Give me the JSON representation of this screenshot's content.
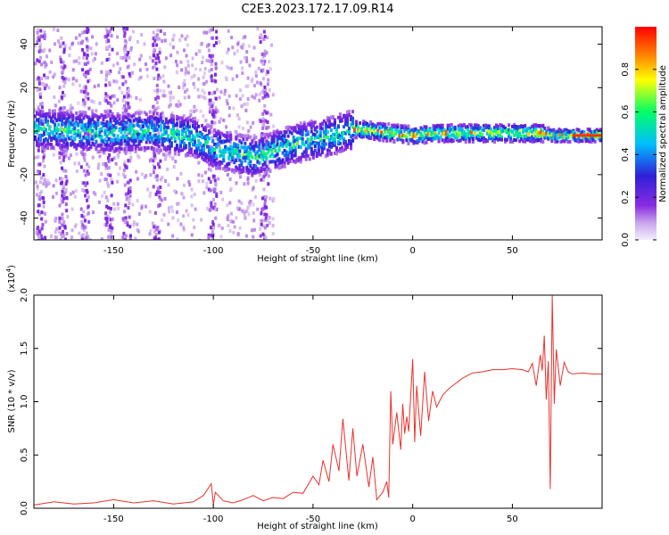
{
  "title": "C2E3.2023.172.17.09.R14",
  "chart_data": [
    {
      "type": "heatmap",
      "xlabel": "Height of straight line (km)",
      "ylabel": "Frequency (Hz)",
      "xlim": [
        -190,
        95
      ],
      "ylim": [
        -50,
        48
      ],
      "xticks": [
        -150,
        -100,
        -50,
        0,
        50
      ],
      "yticks": [
        -40,
        -20,
        0,
        20,
        40
      ],
      "grid": false,
      "colorbar": {
        "label": "Normalized spectral amplitude",
        "range": [
          0,
          1
        ],
        "ticks": [
          0.0,
          0.2,
          0.4,
          0.6,
          0.8
        ],
        "colormap": [
          "#f4eefc",
          "#c9a6ec",
          "#8a2be2",
          "#2f1fd8",
          "#00bfff",
          "#00ff66",
          "#ffff00",
          "#ff8000",
          "#ff0000"
        ]
      },
      "ridge": {
        "x": [
          -190,
          -170,
          -150,
          -130,
          -110,
          -100,
          -90,
          -80,
          -70,
          -60,
          -50,
          -40,
          -30,
          -20,
          -10,
          0,
          10,
          30,
          50,
          65,
          70,
          80,
          95
        ],
        "center_hz": [
          1,
          0,
          -1,
          0,
          -3,
          -8,
          -10,
          -12,
          -9,
          -6,
          -4,
          -2,
          1,
          0,
          -1,
          -2,
          -1,
          -1,
          -1,
          -1,
          -2,
          -2,
          -2
        ]
      },
      "noise_columns_km": [
        -187,
        -176,
        -165,
        -153,
        -144,
        -129,
        -101,
        -75
      ]
    },
    {
      "type": "line",
      "xlabel": "Height of straight line (km)",
      "ylabel": "SNR (10 * v/v)",
      "y_multiplier_label": "(x10",
      "y_multiplier_exp": "4",
      "y_multiplier_close": ")",
      "xlim": [
        -190,
        95
      ],
      "ylim": [
        0,
        20000
      ],
      "xticks": [
        -150,
        -100,
        -50,
        0,
        50
      ],
      "yticks": [
        0,
        5000,
        10000,
        15000,
        20000
      ],
      "ytick_labels": [
        "0.0",
        "0.5",
        "1.0",
        "1.5",
        "2.0"
      ],
      "grid": false,
      "color": "#e8322c",
      "series": [
        {
          "x": [
            -190,
            -180,
            -170,
            -160,
            -150,
            -140,
            -130,
            -120,
            -110,
            -105,
            -101,
            -100,
            -99,
            -95,
            -90,
            -85,
            -80,
            -75,
            -70,
            -65,
            -60,
            -55,
            -50,
            -47,
            -45,
            -42,
            -40,
            -37,
            -35,
            -32,
            -30,
            -28,
            -25,
            -22,
            -20,
            -18,
            -15,
            -13,
            -12,
            -11,
            -10,
            -8,
            -6,
            -5,
            -4,
            -3,
            -2,
            0,
            1,
            2,
            4,
            6,
            8,
            10,
            12,
            15,
            18,
            20,
            25,
            30,
            35,
            40,
            45,
            50,
            55,
            58,
            60,
            62,
            64,
            65,
            66,
            67,
            68,
            69,
            70,
            71,
            72,
            74,
            76,
            78,
            80,
            85,
            90,
            95
          ],
          "y": [
            300,
            600,
            400,
            500,
            800,
            500,
            700,
            400,
            600,
            1200,
            2300,
            300,
            1500,
            700,
            500,
            800,
            1200,
            700,
            1000,
            900,
            1500,
            1400,
            3000,
            2200,
            4500,
            2500,
            6000,
            3500,
            8400,
            2600,
            7500,
            3000,
            6000,
            2000,
            4800,
            800,
            1500,
            2500,
            1000,
            11000,
            6000,
            9000,
            5500,
            9800,
            7000,
            8600,
            7200,
            14000,
            6200,
            11500,
            6800,
            12800,
            8200,
            11000,
            9500,
            10600,
            11200,
            11500,
            12200,
            12700,
            12800,
            13000,
            13000,
            13100,
            13000,
            12800,
            13600,
            11500,
            14400,
            12900,
            16200,
            10200,
            13800,
            1800,
            20000,
            9800,
            14900,
            11500,
            13700,
            12800,
            12600,
            12700,
            12600,
            12600
          ]
        }
      ]
    }
  ]
}
